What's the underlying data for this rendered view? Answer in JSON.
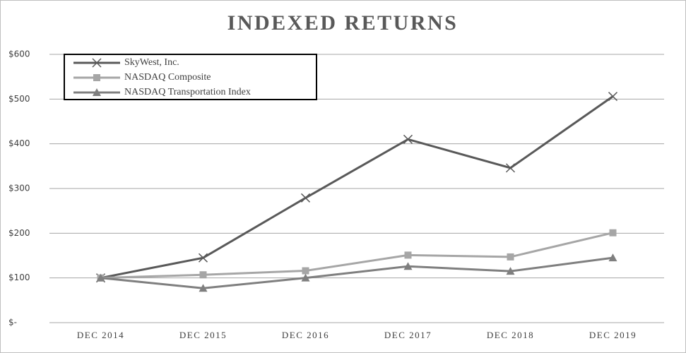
{
  "chart_data": {
    "type": "line",
    "title": "INDEXED RETURNS",
    "categories": [
      "DEC 2014",
      "DEC 2015",
      "DEC 2016",
      "DEC 2017",
      "DEC 2018",
      "DEC 2019"
    ],
    "series": [
      {
        "name": "SkyWest, Inc.",
        "color": "#595959",
        "marker": "x",
        "values": [
          100,
          145,
          279,
          410,
          346,
          506
        ]
      },
      {
        "name": "NASDAQ Composite",
        "color": "#a6a6a6",
        "marker": "square",
        "values": [
          100,
          107,
          116,
          151,
          147,
          201
        ]
      },
      {
        "name": "NASDAQ Transportation Index",
        "color": "#7f7f7f",
        "marker": "triangle",
        "values": [
          100,
          77,
          100,
          126,
          115,
          145
        ]
      }
    ],
    "ylim": [
      0,
      600
    ],
    "yticks": [
      {
        "value": 0,
        "label": "$-"
      },
      {
        "value": 100,
        "label": "$100"
      },
      {
        "value": 200,
        "label": "$200"
      },
      {
        "value": 300,
        "label": "$300"
      },
      {
        "value": 400,
        "label": "$400"
      },
      {
        "value": 500,
        "label": "$500"
      },
      {
        "value": 600,
        "label": "$600"
      }
    ],
    "grid": true,
    "legend": "top-left"
  }
}
